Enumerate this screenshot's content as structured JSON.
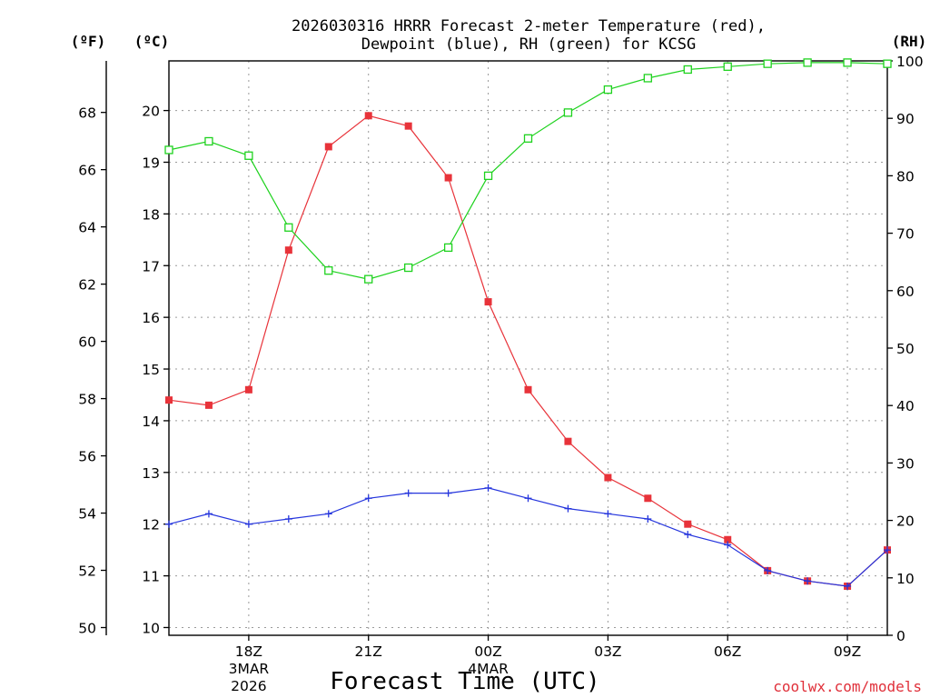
{
  "chart_data": {
    "type": "line",
    "title_line1": "2026030316 HRRR Forecast 2-meter Temperature (red),",
    "title_line2": "Dewpoint (blue), RH (green) for KCSG",
    "xlabel": "Forecast Time (UTC)",
    "credit": "coolwx.com/models",
    "units": {
      "fahrenheit": "(ºF)",
      "celsius": "(ºC)",
      "rh": "(RH)"
    },
    "x_hours": [
      16,
      17,
      18,
      19,
      20,
      21,
      22,
      23,
      24,
      25,
      26,
      27,
      28,
      29,
      30,
      31,
      32,
      33,
      34
    ],
    "x_ticks": [
      {
        "hour": 18,
        "label": "18Z"
      },
      {
        "hour": 21,
        "label": "21Z"
      },
      {
        "hour": 24,
        "label": "00Z"
      },
      {
        "hour": 27,
        "label": "03Z"
      },
      {
        "hour": 30,
        "label": "06Z"
      },
      {
        "hour": 33,
        "label": "09Z"
      }
    ],
    "date_labels": [
      {
        "hour": 18,
        "line1": "3MAR",
        "line2": "2026"
      },
      {
        "hour": 24,
        "line1": "4MAR"
      }
    ],
    "xlim": [
      16,
      34
    ],
    "left_axis_f": {
      "ticks": [
        50,
        52,
        54,
        56,
        58,
        60,
        62,
        64,
        66,
        68
      ],
      "range": [
        49.73,
        69.8
      ]
    },
    "left_axis_c": {
      "ticks": [
        10,
        11,
        12,
        13,
        14,
        15,
        16,
        17,
        18,
        19,
        20
      ],
      "range": [
        9.85,
        20.96
      ]
    },
    "right_axis_rh": {
      "ticks": [
        0,
        10,
        20,
        30,
        40,
        50,
        60,
        70,
        80,
        90,
        100
      ],
      "range": [
        0,
        100
      ]
    },
    "series": [
      {
        "name": "Temperature",
        "color": "#e8333a",
        "marker": "filled-square",
        "axis": "celsius",
        "values": [
          14.4,
          14.3,
          14.6,
          17.3,
          19.3,
          19.9,
          19.7,
          18.7,
          16.3,
          14.6,
          13.6,
          12.9,
          12.5,
          12.0,
          11.7,
          11.1,
          10.9,
          10.8,
          11.5
        ]
      },
      {
        "name": "Dewpoint",
        "color": "#2535dd",
        "marker": "plus",
        "axis": "celsius",
        "values": [
          12.0,
          12.2,
          12.0,
          12.1,
          12.2,
          12.5,
          12.6,
          12.6,
          12.7,
          12.5,
          12.3,
          12.2,
          12.1,
          11.8,
          11.6,
          11.1,
          10.9,
          10.8,
          11.5
        ]
      },
      {
        "name": "RH",
        "color": "#1ed21e",
        "marker": "open-square",
        "axis": "rh",
        "values": [
          84.5,
          86,
          83.5,
          71,
          63.5,
          62,
          64,
          67.5,
          80,
          86.5,
          91,
          95,
          97,
          98.5,
          99,
          99.5,
          99.7,
          99.7,
          99.5
        ]
      }
    ]
  }
}
